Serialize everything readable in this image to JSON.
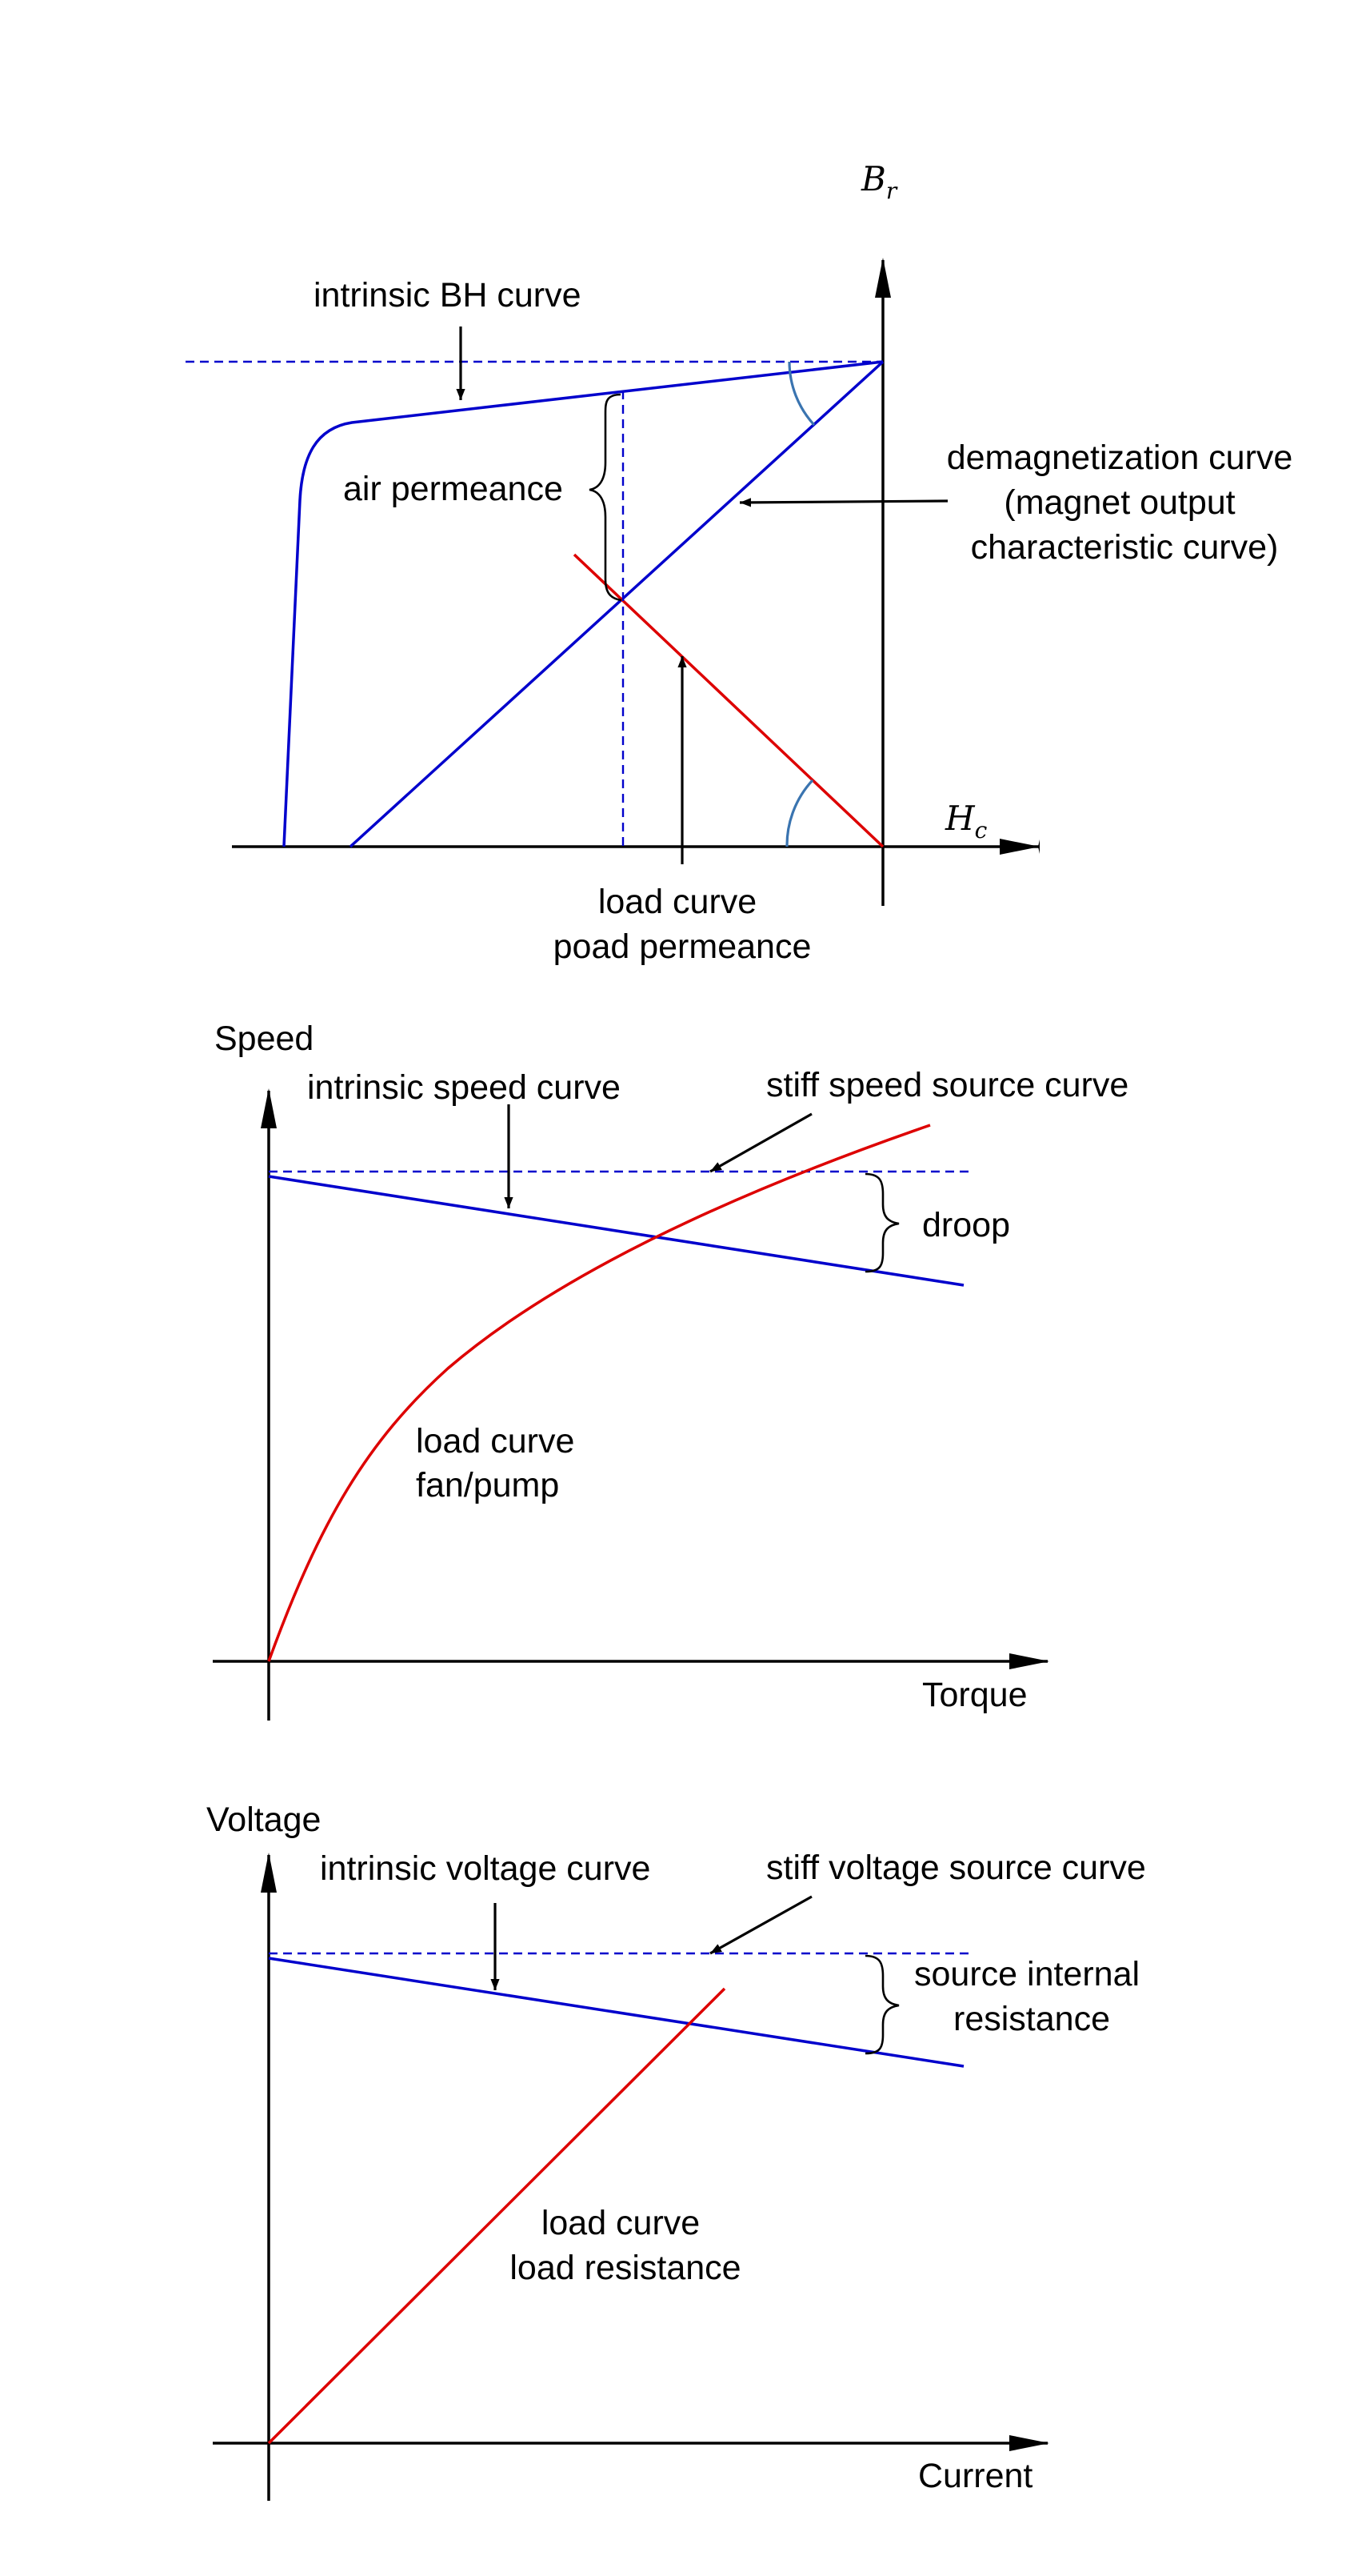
{
  "colors": {
    "blue": "#0000cc",
    "red": "#dd0000",
    "angle_arc": "#3a74b0",
    "ink": "#000000"
  },
  "panel_bh": {
    "y_axis_symbol": "B",
    "y_axis_subscript": "r",
    "x_axis_symbol": "H",
    "x_axis_subscript": "c",
    "intrinsic_label": "intrinsic BH curve",
    "air_permeance_label": "air permeance",
    "demag_label": [
      "demagnetization curve",
      "(magnet output",
      "characteristic curve)"
    ],
    "load_label": [
      "load curve",
      "poad permeance"
    ]
  },
  "panel_speed": {
    "y_axis_label": "Speed",
    "x_axis_label": "Torque",
    "intrinsic_label": "intrinsic speed curve",
    "stiff_label": "stiff speed source curve",
    "droop_label": "droop",
    "load_label": [
      "load curve",
      "fan/pump"
    ]
  },
  "panel_voltage": {
    "y_axis_label": "Voltage",
    "x_axis_label": "Current",
    "intrinsic_label": "intrinsic voltage curve",
    "stiff_label": "stiff voltage source curve",
    "internal_label": [
      "source internal",
      "resistance"
    ],
    "load_label": [
      "load curve",
      "load resistance"
    ]
  }
}
